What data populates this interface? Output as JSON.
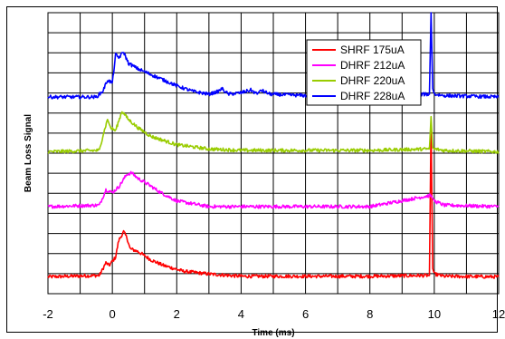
{
  "chart_data": {
    "type": "line",
    "title": "",
    "xlabel": "Time (ms)",
    "ylabel": "Beam Loss Signal",
    "xlim": [
      -2,
      12
    ],
    "x_ticks": [
      -2,
      0,
      2,
      4,
      6,
      8,
      10,
      12
    ],
    "ylim": [
      0,
      10
    ],
    "grid": true,
    "legend_position": "top-right",
    "series": [
      {
        "name": "SHRF 175uA",
        "color": "#ff0000",
        "x": [
          -2,
          -0.4,
          -0.2,
          -0.1,
          0.1,
          0.2,
          0.35,
          0.45,
          0.55,
          0.8,
          1.2,
          1.6,
          2.2,
          3.0,
          4.0,
          6.0,
          8.0,
          9.85,
          9.9,
          9.95,
          10.0,
          10.3,
          12
        ],
        "y": [
          0.6,
          0.65,
          1.1,
          1.0,
          1.3,
          1.9,
          2.2,
          2.0,
          1.6,
          1.5,
          1.2,
          1.0,
          0.8,
          0.7,
          0.62,
          0.62,
          0.62,
          0.65,
          6.1,
          0.9,
          0.7,
          0.62,
          0.6
        ]
      },
      {
        "name": "DHRF 212uA",
        "color": "#ff00ff",
        "x": [
          -2,
          -0.4,
          -0.2,
          0.0,
          0.2,
          0.45,
          0.6,
          0.8,
          1.1,
          1.5,
          2.0,
          2.5,
          3.0,
          4.0,
          6.0,
          8.0,
          9.9,
          10.0,
          10.3,
          12
        ],
        "y": [
          3.1,
          3.15,
          3.7,
          3.6,
          3.8,
          4.25,
          4.3,
          4.1,
          3.9,
          3.6,
          3.3,
          3.2,
          3.1,
          3.1,
          3.1,
          3.1,
          3.5,
          3.3,
          3.15,
          3.1
        ]
      },
      {
        "name": "DHRF 220uA",
        "color": "#99cc00",
        "x": [
          -2,
          -0.4,
          -0.3,
          -0.15,
          -0.05,
          0.1,
          0.3,
          0.5,
          0.8,
          1.2,
          2.0,
          3.0,
          4.0,
          6.0,
          8.0,
          9.85,
          9.9,
          9.95,
          10.0,
          10.3,
          12
        ],
        "y": [
          5.05,
          5.1,
          5.6,
          6.2,
          5.9,
          5.8,
          6.5,
          6.2,
          5.9,
          5.6,
          5.3,
          5.15,
          5.1,
          5.1,
          5.1,
          5.15,
          6.3,
          5.2,
          5.15,
          5.1,
          5.05
        ]
      },
      {
        "name": "DHRF 228uA",
        "color": "#0000ff",
        "x": [
          -2,
          -0.5,
          -0.3,
          -0.15,
          0.0,
          0.1,
          0.2,
          0.35,
          0.5,
          0.8,
          1.2,
          1.6,
          2.0,
          2.5,
          3.0,
          3.3,
          3.4,
          3.6,
          4.0,
          4.3,
          4.5,
          4.6,
          4.9,
          6.0,
          8.0,
          9.85,
          9.9,
          9.95,
          10.0,
          10.3,
          12
        ],
        "y": [
          7.0,
          7.0,
          7.2,
          7.6,
          7.5,
          8.5,
          8.4,
          8.6,
          8.2,
          8.0,
          7.8,
          7.6,
          7.4,
          7.2,
          7.1,
          7.2,
          7.3,
          7.1,
          7.15,
          7.25,
          7.1,
          7.25,
          7.1,
          7.05,
          7.05,
          7.1,
          10.0,
          7.3,
          7.1,
          7.05,
          7.0
        ]
      }
    ]
  }
}
